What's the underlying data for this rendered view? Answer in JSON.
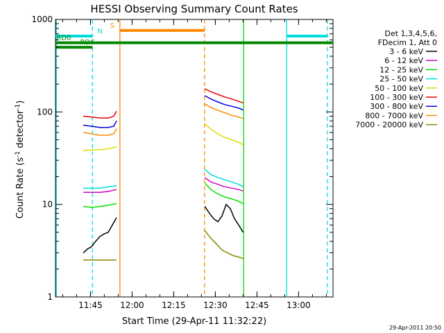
{
  "chart_data": {
    "type": "line",
    "title": "HESSI Observing Summary Count Rates",
    "xlabel": "Start Time (29-Apr-11 11:32:22)",
    "ylabel_main": "Count Rate (s",
    "ylabel_sup1": "-1",
    "ylabel_mid": " detector",
    "ylabel_sup2": "-1",
    "ylabel_end": ")",
    "x_units": "minutes after 11:32:22",
    "xlim": [
      0,
      100
    ],
    "ylim": [
      1,
      1000
    ],
    "yscale": "log",
    "x_ticks": [
      {
        "value": 12.6,
        "label": "11:45"
      },
      {
        "value": 27.6,
        "label": "12:00"
      },
      {
        "value": 42.6,
        "label": "12:15"
      },
      {
        "value": 57.6,
        "label": "12:30"
      },
      {
        "value": 72.6,
        "label": "12:45"
      },
      {
        "value": 87.6,
        "label": "13:00"
      }
    ],
    "y_ticks": [
      {
        "value": 1,
        "label": "1"
      },
      {
        "value": 10,
        "label": "10"
      },
      {
        "value": 100,
        "label": "100"
      },
      {
        "value": 1000,
        "label": "1000"
      }
    ],
    "legend": {
      "position": "right",
      "header": [
        "Det 1,3,4,5,6,",
        "FDecim 1, Att 0"
      ]
    },
    "series": [
      {
        "name": "3 - 6 keV",
        "color": "#000000",
        "segments": [
          {
            "x": [
              10.0,
              11.5,
              13.0,
              14.5,
              16.0,
              17.5,
              19.0,
              20.5,
              22.0
            ],
            "y": [
              3.0,
              3.3,
              3.5,
              4.0,
              4.5,
              4.8,
              5.0,
              6.0,
              7.2
            ]
          },
          {
            "x": [
              53.8,
              55.5,
              57.0,
              58.5,
              60.0,
              61.5,
              63.0,
              64.5,
              66.0,
              67.6
            ],
            "y": [
              9.5,
              8.0,
              7.0,
              6.5,
              7.5,
              10.0,
              9.0,
              7.0,
              6.0,
              5.0
            ]
          }
        ]
      },
      {
        "name": "6 - 12 keV",
        "color": "#cc00cc",
        "segments": [
          {
            "x": [
              10.0,
              13.0,
              16.0,
              19.0,
              22.0
            ],
            "y": [
              13.5,
              13.5,
              13.5,
              13.8,
              14.5
            ]
          },
          {
            "x": [
              53.8,
              56.0,
              58.5,
              61.0,
              63.5,
              66.0,
              67.6
            ],
            "y": [
              19.5,
              17.5,
              16.5,
              15.5,
              15.0,
              14.5,
              14.0
            ]
          }
        ]
      },
      {
        "name": "12 - 25 keV",
        "color": "#00dd00",
        "segments": [
          {
            "x": [
              10.0,
              13.0,
              16.0,
              19.0,
              22.0
            ],
            "y": [
              9.5,
              9.3,
              9.5,
              9.8,
              10.2
            ]
          },
          {
            "x": [
              53.8,
              56.0,
              58.5,
              61.0,
              63.5,
              66.0,
              67.6
            ],
            "y": [
              17.0,
              14.5,
              13.0,
              12.0,
              11.5,
              10.8,
              10.2
            ]
          }
        ]
      },
      {
        "name": "25 - 50 keV",
        "color": "#00dddd",
        "segments": [
          {
            "x": [
              10.0,
              13.0,
              16.0,
              19.0,
              22.0
            ],
            "y": [
              15.0,
              15.0,
              15.0,
              15.5,
              16.0
            ]
          },
          {
            "x": [
              53.8,
              56.0,
              58.5,
              61.0,
              63.5,
              66.0,
              67.6
            ],
            "y": [
              24.0,
              21.0,
              19.5,
              18.5,
              17.5,
              16.5,
              15.5
            ]
          }
        ]
      },
      {
        "name": "50 - 100 keV",
        "color": "#dddd00",
        "segments": [
          {
            "x": [
              10.0,
              13.0,
              16.0,
              19.0,
              22.0
            ],
            "y": [
              38.0,
              39.0,
              39.0,
              40.0,
              42.0
            ]
          },
          {
            "x": [
              53.8,
              56.0,
              58.5,
              61.0,
              63.5,
              66.0,
              67.6
            ],
            "y": [
              75.0,
              65.0,
              58.0,
              53.0,
              50.0,
              47.0,
              44.0
            ]
          }
        ]
      },
      {
        "name": "100 - 300 keV",
        "color": "#ee0000",
        "segments": [
          {
            "x": [
              10.0,
              13.0,
              16.0,
              19.0,
              21.0,
              22.0
            ],
            "y": [
              90.0,
              88.0,
              86.0,
              86.0,
              90.0,
              102.0
            ]
          },
          {
            "x": [
              53.8,
              56.0,
              58.5,
              61.0,
              63.5,
              66.0,
              67.6
            ],
            "y": [
              178.0,
              165.0,
              155.0,
              145.0,
              138.0,
              130.0,
              125.0
            ]
          }
        ]
      },
      {
        "name": "300 - 800 keV",
        "color": "#0000dd",
        "segments": [
          {
            "x": [
              10.0,
              13.0,
              16.0,
              19.0,
              21.0,
              22.0
            ],
            "y": [
              72.0,
              70.0,
              68.0,
              68.0,
              70.0,
              80.0
            ]
          },
          {
            "x": [
              53.8,
              56.0,
              58.5,
              61.0,
              63.5,
              66.0,
              67.6
            ],
            "y": [
              150.0,
              138.0,
              128.0,
              120.0,
              115.0,
              110.0,
              105.0
            ]
          }
        ]
      },
      {
        "name": "800 - 7000 keV",
        "color": "#ff8800",
        "segments": [
          {
            "x": [
              10.0,
              13.0,
              16.0,
              19.0,
              21.0,
              22.0
            ],
            "y": [
              60.0,
              58.0,
              56.0,
              56.0,
              58.0,
              66.0
            ]
          },
          {
            "x": [
              53.8,
              56.0,
              58.5,
              61.0,
              63.5,
              66.0,
              67.6
            ],
            "y": [
              122.0,
              112.0,
              104.0,
              98.0,
              92.0,
              88.0,
              85.0
            ]
          }
        ]
      },
      {
        "name": "7000 - 20000 keV",
        "color": "#888800",
        "segments": [
          {
            "x": [
              10.0,
              12.0,
              14.0,
              16.0,
              18.0,
              20.0,
              22.0
            ],
            "y": [
              2.5,
              2.5,
              2.5,
              2.5,
              2.5,
              2.5,
              2.5
            ]
          },
          {
            "x": [
              53.8,
              55.5,
              57.0,
              58.5,
              60.0,
              62.0,
              64.0,
              66.0,
              67.6
            ],
            "y": [
              5.2,
              4.5,
              4.0,
              3.6,
              3.2,
              3.0,
              2.8,
              2.7,
              2.6
            ]
          }
        ]
      }
    ],
    "vertical_lines": [
      {
        "x": 0.3,
        "color": "#00dddd",
        "style": "solid"
      },
      {
        "x": 13.3,
        "color": "#00dddd",
        "style": "dashed"
      },
      {
        "x": 23.2,
        "color": "#ff8800",
        "style": "solid"
      },
      {
        "x": 53.7,
        "color": "#ff8800",
        "style": "dashed"
      },
      {
        "x": 67.8,
        "color": "#00dd00",
        "style": "solid"
      },
      {
        "x": 83.3,
        "color": "#00dddd",
        "style": "solid"
      },
      {
        "x": 98.0,
        "color": "#00dddd",
        "style": "dashed"
      }
    ],
    "status_bars": [
      {
        "label": "N",
        "color": "#00dddd",
        "y": 660,
        "segments": [
          [
            0,
            13.3
          ],
          [
            83.3,
            98.0
          ]
        ],
        "label_x": 16.0
      },
      {
        "label": "S",
        "color": "#ff8800",
        "y": 760,
        "segments": [
          [
            23.2,
            53.7
          ]
        ],
        "label_x": 20.5
      },
      {
        "label": "RD0",
        "color": "#008800",
        "y": 560,
        "segments": [
          [
            0,
            100
          ]
        ],
        "label_x": 3.0
      },
      {
        "label": "RD6",
        "color": "#008800",
        "y": 500,
        "segments": [
          [
            0,
            13.3
          ]
        ],
        "label_x": 11.5
      }
    ]
  },
  "footer": {
    "timestamp": "29-Apr-2011 20:50"
  }
}
